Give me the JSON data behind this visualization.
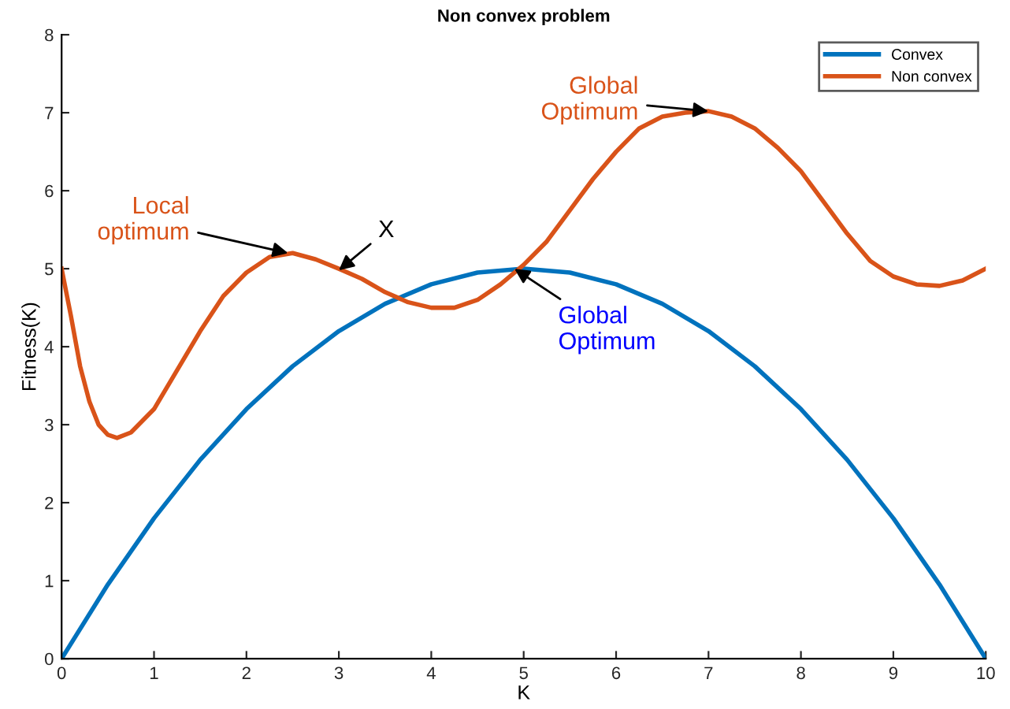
{
  "chart_data": {
    "type": "line",
    "title": "Non convex problem",
    "xlabel": "K",
    "ylabel": "Fitness(K)",
    "xlim": [
      0,
      10
    ],
    "xticks": [
      0,
      1,
      2,
      3,
      4,
      5,
      6,
      7,
      8,
      9,
      10
    ],
    "ylim": [
      0,
      8
    ],
    "yticks": [
      0,
      1,
      2,
      3,
      4,
      5,
      6,
      7,
      8
    ],
    "grid": false,
    "legend": "top right",
    "series": [
      {
        "name": "Convex",
        "color": "#0072bd",
        "x": [
          0,
          0.5,
          1,
          1.5,
          2,
          2.5,
          3,
          3.5,
          4,
          4.5,
          5,
          5.5,
          6,
          6.5,
          7,
          7.5,
          8,
          8.5,
          9,
          9.5,
          10
        ],
        "values": [
          0,
          0.95,
          1.8,
          2.55,
          3.2,
          3.75,
          4.2,
          4.55,
          4.8,
          4.95,
          5,
          4.95,
          4.8,
          4.55,
          4.2,
          3.75,
          3.2,
          2.55,
          1.8,
          0.95,
          0
        ]
      },
      {
        "name": "Non convex",
        "color": "#d95319",
        "x": [
          0,
          0.1,
          0.2,
          0.3,
          0.4,
          0.5,
          0.6,
          0.75,
          1,
          1.25,
          1.5,
          1.75,
          2,
          2.25,
          2.5,
          2.75,
          3,
          3.25,
          3.5,
          3.75,
          4,
          4.25,
          4.5,
          4.75,
          5,
          5.25,
          5.5,
          5.75,
          6,
          6.25,
          6.5,
          6.75,
          7,
          7.25,
          7.5,
          7.75,
          8,
          8.25,
          8.5,
          8.75,
          9,
          9.25,
          9.5,
          9.75,
          10
        ],
        "values": [
          5,
          4.4,
          3.75,
          3.3,
          3.0,
          2.87,
          2.83,
          2.9,
          3.2,
          3.7,
          4.2,
          4.65,
          4.95,
          5.15,
          5.2,
          5.12,
          5.0,
          4.87,
          4.7,
          4.57,
          4.5,
          4.5,
          4.6,
          4.8,
          5.05,
          5.35,
          5.75,
          6.15,
          6.5,
          6.8,
          6.95,
          7.0,
          7.02,
          6.95,
          6.8,
          6.55,
          6.25,
          5.85,
          5.45,
          5.1,
          4.9,
          4.8,
          4.78,
          4.85,
          5.0
        ]
      }
    ],
    "annotations": [
      {
        "text": "Local\noptimum",
        "x": 2.45,
        "y": 5.2
      },
      {
        "text": "X",
        "x": 3.0,
        "y": 4.98
      },
      {
        "text": "Global\nOptimum",
        "x": 7.0,
        "y": 7.02
      },
      {
        "text": "Global\nOptimum",
        "x": 4.9,
        "y": 5.0
      }
    ]
  }
}
